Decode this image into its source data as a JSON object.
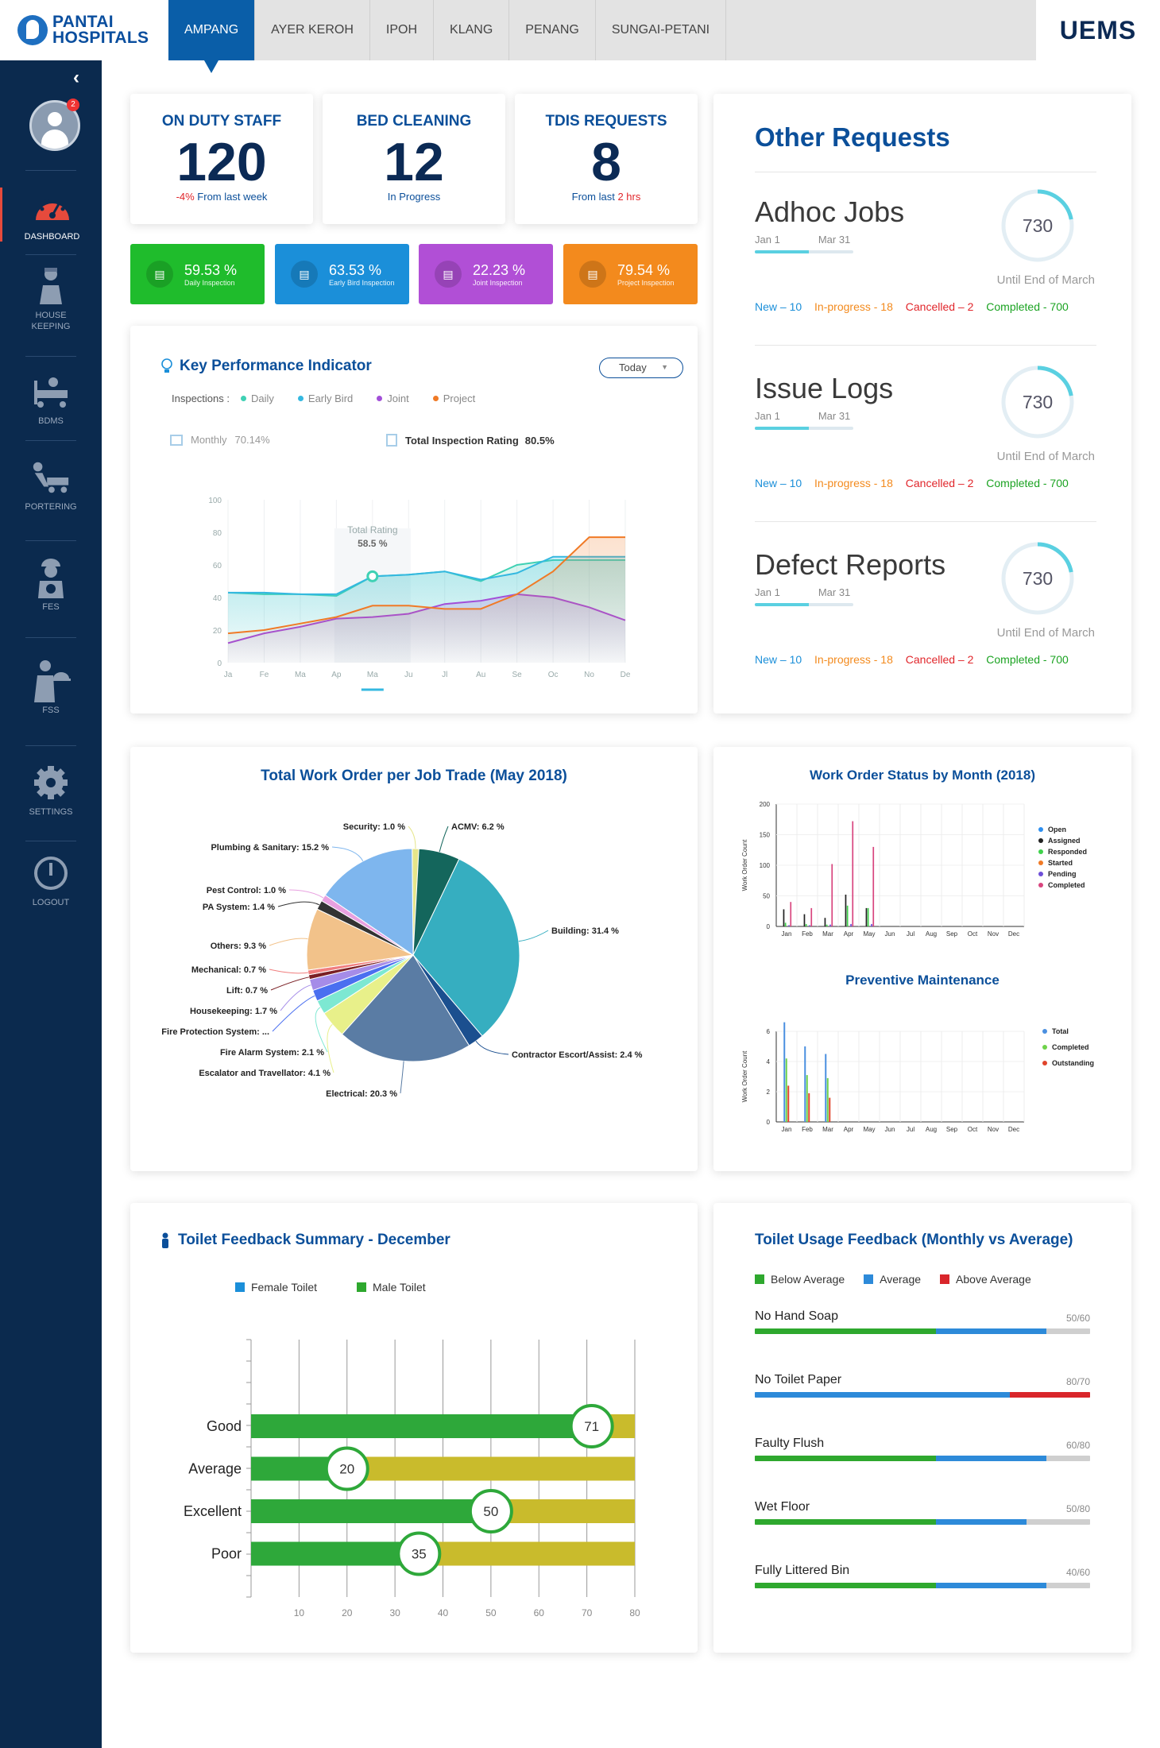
{
  "header": {
    "brand_line1": "PANTAI",
    "brand_line2": "HOSPITALS",
    "app": "UEMS",
    "tabs": [
      {
        "label": "AMPANG"
      },
      {
        "label": "AYER KEROH"
      },
      {
        "label": "IPOH"
      },
      {
        "label": "KLANG"
      },
      {
        "label": "PENANG"
      },
      {
        "label": "SUNGAI-PETANI"
      }
    ]
  },
  "sidebar": {
    "badge": "2",
    "items": [
      {
        "label": "DASHBOARD",
        "icon": "speedometer-icon"
      },
      {
        "label": "HOUSE KEEPING",
        "icon": "housekeeper-icon"
      },
      {
        "label": "BDMS",
        "icon": "hospital-bed-icon"
      },
      {
        "label": "PORTERING",
        "icon": "porter-cart-icon"
      },
      {
        "label": "FES",
        "icon": "engineer-icon"
      },
      {
        "label": "FSS",
        "icon": "food-service-icon"
      },
      {
        "label": "SETTINGS",
        "icon": "gear-icon"
      },
      {
        "label": "LOGOUT",
        "icon": "power-icon"
      }
    ]
  },
  "stats": [
    {
      "label": "ON DUTY STAFF",
      "value": "120",
      "sub_red": "-4%",
      "sub": " From last week"
    },
    {
      "label": "BED CLEANING",
      "value": "12",
      "sub_red": "",
      "sub": "In Progress"
    },
    {
      "label": "TDIS REQUESTS",
      "value": "8",
      "sub_pre": "From last ",
      "sub_red": "2 hrs",
      "sub": ""
    }
  ],
  "pills": [
    {
      "value": "59.53 %",
      "label": "Daily Inspection",
      "color": "#1fbc2c"
    },
    {
      "value": "63.53 %",
      "label": "Early Bird Inspection",
      "color": "#1b8fd9"
    },
    {
      "value": "22.23 %",
      "label": "Joint Inspection",
      "color": "#b14fd6"
    },
    {
      "value": "79.54 %",
      "label": "Project Inspection",
      "color": "#f38a1d"
    }
  ],
  "kpi": {
    "title": "Key Performance Indicator",
    "dropdown": "Today",
    "inspections_label": "Inspections :",
    "monthly_label": "Monthly",
    "monthly_value": "70.14%",
    "total_label": "Total Inspection Rating",
    "total_value": "80.5%",
    "tooltip_label": "Total Rating",
    "tooltip_value": "58.5 %",
    "chart_data": {
      "type": "area",
      "categories": [
        "Ja",
        "Fe",
        "Ma",
        "Ap",
        "Ma",
        "Ju",
        "Jl",
        "Au",
        "Se",
        "Oc",
        "No",
        "De"
      ],
      "ylim": [
        0,
        100
      ],
      "yticks": [
        0,
        20,
        40,
        60,
        80,
        100
      ],
      "highlight_index": 4,
      "series": [
        {
          "name": "Daily",
          "color": "#3fd1b4",
          "values": [
            43,
            42,
            42,
            41,
            53,
            54,
            56,
            50,
            60,
            63,
            63,
            63
          ]
        },
        {
          "name": "Early Bird",
          "color": "#34b8e0",
          "values": [
            43,
            43,
            42,
            42,
            53,
            54,
            56,
            51,
            55,
            65,
            65,
            65
          ]
        },
        {
          "name": "Joint",
          "color": "#a24fd8",
          "values": [
            12,
            18,
            22,
            27,
            28,
            30,
            36,
            38,
            42,
            40,
            34,
            26
          ]
        },
        {
          "name": "Project",
          "color": "#f07a26",
          "values": [
            18,
            20,
            24,
            28,
            35,
            35,
            33,
            33,
            42,
            56,
            77,
            77
          ]
        }
      ]
    }
  },
  "other": {
    "title": "Other Requests",
    "items": [
      {
        "title": "Adhoc Jobs",
        "d1": "Jan 1",
        "d2": "Mar 31",
        "progress": 0.55,
        "ring": "730",
        "ring_fraction": 0.22,
        "until": "Until End of March",
        "new": "New – 10",
        "prog": "In-progress - 18",
        "can": "Cancelled – 2",
        "comp": "Completed - 700"
      },
      {
        "title": "Issue Logs",
        "d1": "Jan 1",
        "d2": "Mar 31",
        "progress": 0.55,
        "ring": "730",
        "ring_fraction": 0.22,
        "until": "Until End of March",
        "new": "New – 10",
        "prog": "In-progress - 18",
        "can": "Cancelled – 2",
        "comp": "Completed - 700"
      },
      {
        "title": "Defect Reports",
        "d1": "Jan 1",
        "d2": "Mar 31",
        "progress": 0.55,
        "ring": "730",
        "ring_fraction": 0.22,
        "until": "Until End of March",
        "new": "New – 10",
        "prog": "In-progress - 18",
        "can": "Cancelled – 2",
        "comp": "Completed - 700"
      }
    ]
  },
  "pie": {
    "title": "Total Work Order per Job Trade (May 2018)",
    "chart_data": {
      "type": "pie",
      "slices": [
        {
          "label": "Security: 1.0 %",
          "value": 1.0,
          "color": "#e6e58a"
        },
        {
          "label": "ACMV: 6.2 %",
          "value": 6.2,
          "color": "#14665c"
        },
        {
          "label": "Building: 31.4 %",
          "value": 31.4,
          "color": "#36aec0"
        },
        {
          "label": "Contractor Escort/Assist: 2.4 %",
          "value": 2.4,
          "color": "#1b4f8f"
        },
        {
          "label": "Electrical: 20.3 %",
          "value": 20.3,
          "color": "#5a7ca4"
        },
        {
          "label": "Escalator and Travellator: 4.1 %",
          "value": 4.1,
          "color": "#e8f08a"
        },
        {
          "label": "Fire Alarm System: 2.1 %",
          "value": 2.1,
          "color": "#7de8d2"
        },
        {
          "label": "Fire Protection System: ...",
          "value": 1.7,
          "color": "#4a6ff0"
        },
        {
          "label": "Housekeeping: 1.7 %",
          "value": 1.7,
          "color": "#a58ce8"
        },
        {
          "label": "Lift: 0.7 %",
          "value": 0.7,
          "color": "#7a1f24"
        },
        {
          "label": "Mechanical: 0.7 %",
          "value": 0.7,
          "color": "#f07e7e"
        },
        {
          "label": "Others: 9.3 %",
          "value": 9.3,
          "color": "#f2c28a"
        },
        {
          "label": "PA System: 1.4 %",
          "value": 1.4,
          "color": "#333333"
        },
        {
          "label": "Pest Control: 1.0 %",
          "value": 1.0,
          "color": "#e8a0e0"
        },
        {
          "label": "Plumbing & Sanitary: 15.2 %",
          "value": 15.2,
          "color": "#7eb6ee"
        }
      ]
    }
  },
  "wos": {
    "title": "Work Order Status by Month (2018)",
    "ylabel": "Work Order Count",
    "chart_data": {
      "type": "bar",
      "categories": [
        "Jan",
        "Feb",
        "Mar",
        "Apr",
        "May",
        "Jun",
        "Jul",
        "Aug",
        "Sep",
        "Oct",
        "Nov",
        "Dec"
      ],
      "ylim": [
        0,
        200
      ],
      "yticks": [
        0,
        50,
        100,
        150,
        200
      ],
      "series": [
        {
          "name": "Open",
          "color": "#2d8ff0",
          "values": [
            0,
            0,
            0,
            0,
            0,
            0,
            0,
            0,
            0,
            0,
            0,
            0
          ]
        },
        {
          "name": "Assigned",
          "color": "#222222",
          "values": [
            28,
            20,
            14,
            52,
            30,
            0,
            0,
            0,
            0,
            0,
            0,
            0
          ]
        },
        {
          "name": "Responded",
          "color": "#3fd24b",
          "values": [
            6,
            4,
            3,
            34,
            30,
            0,
            0,
            0,
            0,
            0,
            0,
            0
          ]
        },
        {
          "name": "Started",
          "color": "#f07a26",
          "values": [
            0,
            0,
            0,
            0,
            0,
            0,
            0,
            0,
            0,
            0,
            0,
            0
          ]
        },
        {
          "name": "Pending",
          "color": "#6e4fd8",
          "values": [
            2,
            2,
            3,
            4,
            4,
            0,
            0,
            0,
            0,
            0,
            0,
            0
          ]
        },
        {
          "name": "Completed",
          "color": "#d8457e",
          "values": [
            40,
            30,
            102,
            172,
            130,
            0,
            0,
            0,
            0,
            0,
            0,
            0
          ]
        }
      ]
    }
  },
  "pm": {
    "title": "Preventive Maintenance",
    "ylabel": "Work Order Count",
    "chart_data": {
      "type": "bar",
      "categories": [
        "Jan",
        "Feb",
        "Mar",
        "Apr",
        "May",
        "Jun",
        "Jul",
        "Aug",
        "Sep",
        "Oct",
        "Nov",
        "Dec"
      ],
      "ylim": [
        0,
        6
      ],
      "yticks": [
        0,
        2,
        4,
        6
      ],
      "series": [
        {
          "name": "Total",
          "color": "#4a8fe0",
          "values": [
            6.6,
            5,
            4.5,
            0,
            0,
            0,
            0,
            0,
            0,
            0,
            0,
            0
          ]
        },
        {
          "name": "Completed",
          "color": "#6fd24b",
          "values": [
            4.2,
            3.1,
            2.9,
            0,
            0,
            0,
            0,
            0,
            0,
            0,
            0,
            0
          ]
        },
        {
          "name": "Outstanding",
          "color": "#e0442b",
          "values": [
            2.4,
            1.9,
            1.6,
            0,
            0,
            0,
            0,
            0,
            0,
            0,
            0,
            0
          ]
        }
      ]
    }
  },
  "toilet": {
    "title": "Toilet Feedback Summary - December",
    "legend_female": "Female Toilet",
    "legend_male": "Male Toilet",
    "chart_data": {
      "type": "bar",
      "categories": [
        "Good",
        "Average",
        "Excellent",
        "Poor"
      ],
      "values": [
        71,
        20,
        50,
        35
      ],
      "xlim": [
        0,
        80
      ],
      "xticks": [
        10,
        20,
        30,
        40,
        50,
        60,
        70,
        80
      ]
    }
  },
  "usage": {
    "title": "Toilet Usage Feedback (Monthly vs Average)",
    "legend": [
      {
        "label": "Below Average",
        "color": "#2ea82e"
      },
      {
        "label": "Average",
        "color": "#2d8ad9"
      },
      {
        "label": "Above Average",
        "color": "#d9262b"
      }
    ],
    "items": [
      {
        "label": "No Hand Soap",
        "ratio": "50/60",
        "below": 0.54,
        "average": 0.33,
        "above": 0
      },
      {
        "label": "No Toilet Paper",
        "ratio": "80/70",
        "below": 0,
        "average": 0.76,
        "above": 0.24
      },
      {
        "label": "Faulty Flush",
        "ratio": "60/80",
        "below": 0.54,
        "average": 0.33,
        "above": 0
      },
      {
        "label": "Wet Floor",
        "ratio": "50/80",
        "below": 0.54,
        "average": 0.27,
        "above": 0
      },
      {
        "label": "Fully Littered Bin",
        "ratio": "40/60",
        "below": 0.54,
        "average": 0.33,
        "above": 0
      }
    ]
  }
}
